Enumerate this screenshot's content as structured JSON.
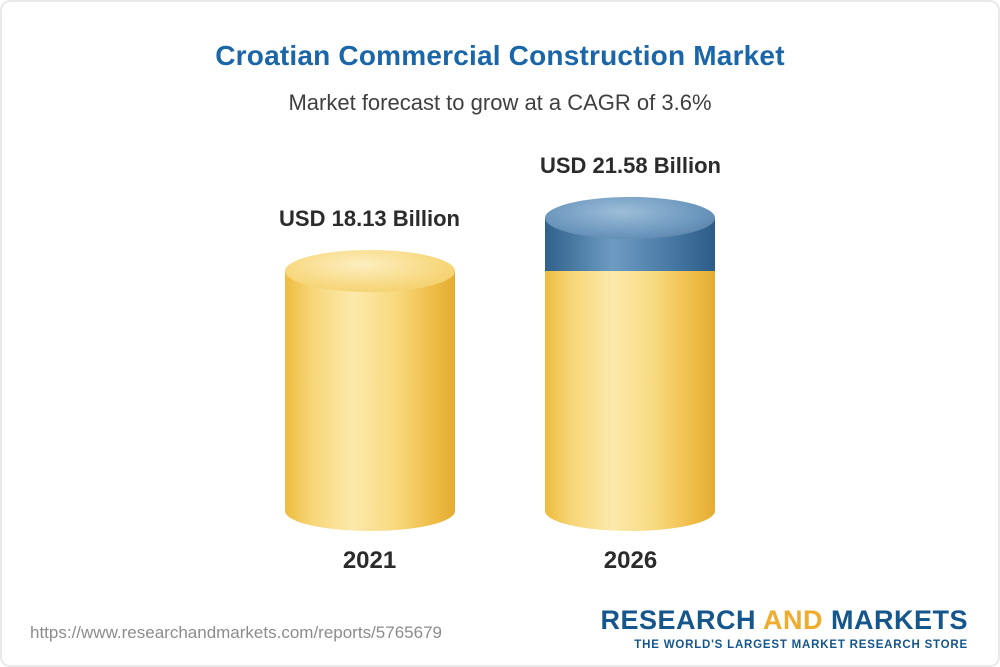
{
  "chart_data": {
    "type": "bar",
    "variant": "3d-cylinder",
    "title": "Croatian Commercial Construction Market",
    "subtitle": "Market forecast to grow at a CAGR of 3.6%",
    "cagr_percent": 3.6,
    "unit": "USD Billion",
    "categories": [
      "2021",
      "2026"
    ],
    "values": [
      18.13,
      21.58
    ],
    "bars": [
      {
        "category": "2021",
        "value": 18.13,
        "label": "USD 18.13 Billion",
        "color": "#f7d06a"
      },
      {
        "category": "2026",
        "value": 21.58,
        "label": "USD 21.58 Billion",
        "color": "#f7d06a",
        "growth_cap_color": "#4a7ba6"
      }
    ],
    "legend": false,
    "axes": false,
    "grid": false
  },
  "footer": {
    "url": "https://www.researchandmarkets.com/reports/5765679",
    "logo": {
      "research": "RESEARCH",
      "and": "AND",
      "markets": "MARKETS",
      "tagline": "THE WORLD'S LARGEST MARKET RESEARCH STORE"
    }
  },
  "colors": {
    "title_blue": "#1a66a8",
    "bar_yellow": "#f7d06a",
    "growth_blue": "#4a7ba6",
    "logo_blue": "#15568c",
    "logo_gold": "#f0ad2d",
    "url_gray": "#8c8c8c",
    "text_dark": "#2b2b2b"
  }
}
